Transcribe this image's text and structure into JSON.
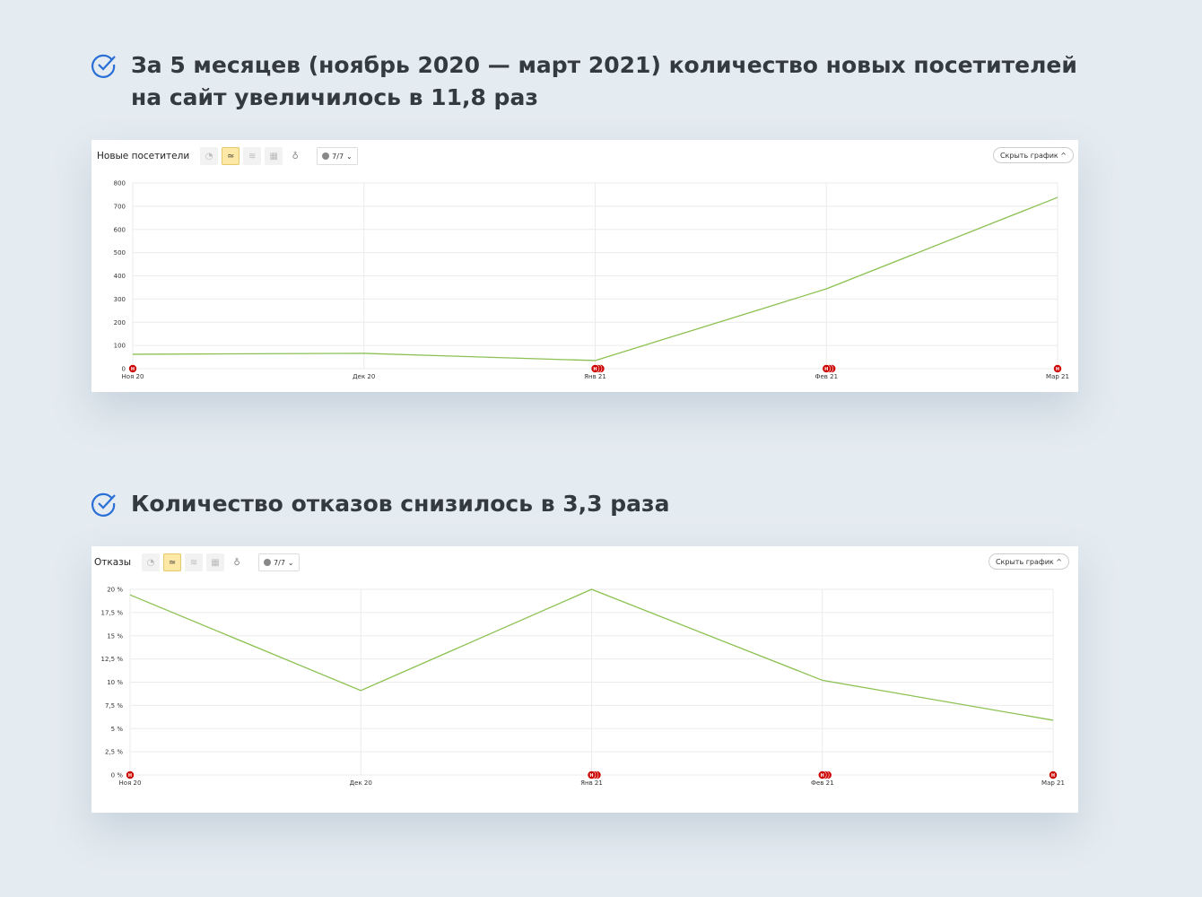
{
  "headings": [
    {
      "line1": "За 5 месяцев (ноябрь 2020 — март 2021) количество новых посетителей",
      "line2": "на сайт увеличилось в 11,8 раз",
      "icon": "check-circle-icon"
    },
    {
      "line1": "Количество отказов снизилось в 3,3 раза",
      "icon": "check-circle-icon"
    }
  ],
  "colors": {
    "line": "#8cc152",
    "marker": "#cc0000",
    "accent_check": "#2a6fd6",
    "background": "#e4ebf1"
  },
  "chart_data": [
    {
      "type": "line",
      "title": "Новые посетители",
      "toolbar": {
        "selector_label": "7/7",
        "hide_label": "Скрыть график ^",
        "active_mode": "line"
      },
      "categories": [
        "Ноя 20",
        "Дек 20",
        "Янв 21",
        "Фев 21",
        "Мар 21"
      ],
      "values": [
        62,
        66,
        35,
        344,
        738
      ],
      "yticks": [
        "0",
        "100",
        "200",
        "300",
        "400",
        "500",
        "600",
        "700",
        "800"
      ],
      "ylim": [
        0,
        800
      ],
      "grid": true,
      "annotation_label": "Н",
      "annotation_counts": [
        1,
        0,
        3,
        3,
        1
      ]
    },
    {
      "type": "line",
      "title": "Отказы",
      "toolbar": {
        "selector_label": "7/7",
        "hide_label": "Скрыть график ^",
        "active_mode": "line"
      },
      "categories": [
        "Ноя 20",
        "Дек 20",
        "Янв 21",
        "Фев 21",
        "Мар 21"
      ],
      "values": [
        19.4,
        9.1,
        20.0,
        10.2,
        5.9
      ],
      "yticks": [
        "0 %",
        "2,5 %",
        "5 %",
        "7,5 %",
        "10 %",
        "12,5 %",
        "15 %",
        "17,5 %",
        "20 %"
      ],
      "ylim": [
        0,
        20
      ],
      "grid": true,
      "annotation_label": "Н",
      "annotation_counts": [
        1,
        0,
        3,
        3,
        1
      ]
    }
  ]
}
